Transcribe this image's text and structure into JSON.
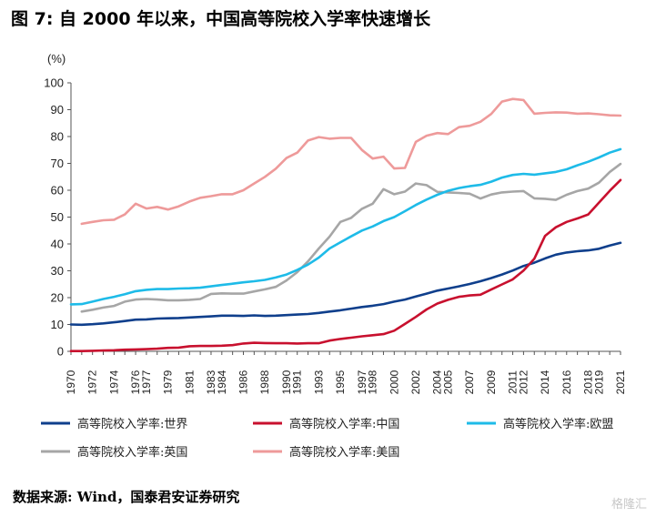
{
  "title": "图 7:  自 2000 年以来，中国高等院校入学率快速增长",
  "source": "数据来源:  Wind，国泰君安证券研究",
  "watermark": "格隆汇",
  "chart_data": {
    "type": "line",
    "unit_label": "(%)",
    "ylim": [
      0,
      100
    ],
    "yticks": [
      0,
      10,
      20,
      30,
      40,
      50,
      60,
      70,
      80,
      90,
      100
    ],
    "xlim": [
      1970,
      2021
    ],
    "xticks": [
      1970,
      1972,
      1974,
      1976,
      1977,
      1979,
      1981,
      1983,
      1984,
      1986,
      1988,
      1990,
      1991,
      1993,
      1995,
      1997,
      1998,
      2000,
      2002,
      2004,
      2005,
      2007,
      2009,
      2011,
      2012,
      2014,
      2016,
      2018,
      2019,
      2021
    ],
    "grid": false,
    "legend_position": "bottom",
    "series": [
      {
        "name": "高等院校入学率:世界",
        "color": "#0f3f8c",
        "x": [
          1970,
          1971,
          1972,
          1973,
          1974,
          1975,
          1976,
          1977,
          1978,
          1979,
          1980,
          1981,
          1982,
          1983,
          1984,
          1985,
          1986,
          1987,
          1988,
          1989,
          1990,
          1991,
          1992,
          1993,
          1994,
          1995,
          1996,
          1997,
          1998,
          1999,
          2000,
          2001,
          2002,
          2003,
          2004,
          2005,
          2006,
          2007,
          2008,
          2009,
          2010,
          2011,
          2012,
          2013,
          2014,
          2015,
          2016,
          2017,
          2018,
          2019,
          2020,
          2021
        ],
        "y": [
          10,
          9.9,
          10.1,
          10.4,
          10.8,
          11.3,
          11.8,
          11.9,
          12.2,
          12.3,
          12.4,
          12.6,
          12.8,
          13,
          13.3,
          13.3,
          13.2,
          13.4,
          13.2,
          13.3,
          13.5,
          13.7,
          13.9,
          14.3,
          14.8,
          15.3,
          15.9,
          16.5,
          17,
          17.6,
          18.5,
          19.3,
          20.4,
          21.5,
          22.6,
          23.4,
          24.2,
          25.1,
          26.1,
          27.3,
          28.6,
          30.1,
          31.8,
          33,
          34.6,
          36,
          36.8,
          37.3,
          37.6,
          38.2,
          39.4,
          40.4
        ]
      },
      {
        "name": "高等院校入学率:中国",
        "color": "#c8102e",
        "x": [
          1970,
          1971,
          1972,
          1973,
          1974,
          1975,
          1976,
          1977,
          1978,
          1979,
          1980,
          1981,
          1982,
          1983,
          1984,
          1985,
          1986,
          1987,
          1988,
          1989,
          1990,
          1991,
          1992,
          1993,
          1994,
          1995,
          1996,
          1997,
          1998,
          1999,
          2000,
          2001,
          2002,
          2003,
          2004,
          2005,
          2006,
          2007,
          2008,
          2009,
          2010,
          2011,
          2012,
          2013,
          2014,
          2015,
          2016,
          2017,
          2018,
          2019,
          2020,
          2021
        ],
        "y": [
          0.1,
          0.1,
          0.2,
          0.3,
          0.4,
          0.6,
          0.7,
          0.8,
          1,
          1.3,
          1.4,
          1.9,
          2,
          2,
          2.1,
          2.3,
          2.9,
          3.2,
          3.1,
          3,
          3,
          2.9,
          3,
          3,
          4,
          4.6,
          5.1,
          5.6,
          6,
          6.4,
          7.7,
          10.2,
          12.8,
          15.6,
          17.8,
          19.2,
          20.3,
          20.8,
          21.1,
          23,
          24.9,
          26.8,
          30.1,
          34.5,
          43,
          46.2,
          48.2,
          49.5,
          51,
          55.4,
          59.8,
          63.8
        ]
      },
      {
        "name": "高等院校入学率:欧盟",
        "color": "#1ebbe8",
        "x": [
          1970,
          1971,
          1972,
          1973,
          1974,
          1975,
          1976,
          1977,
          1978,
          1979,
          1980,
          1981,
          1982,
          1983,
          1984,
          1985,
          1986,
          1987,
          1988,
          1989,
          1990,
          1991,
          1992,
          1993,
          1994,
          1995,
          1996,
          1997,
          1998,
          1999,
          2000,
          2001,
          2002,
          2003,
          2004,
          2005,
          2006,
          2007,
          2008,
          2009,
          2010,
          2011,
          2012,
          2013,
          2014,
          2015,
          2016,
          2017,
          2018,
          2019,
          2020,
          2021
        ],
        "y": [
          17.5,
          17.6,
          18.5,
          19.5,
          20.3,
          21.3,
          22.4,
          22.9,
          23.2,
          23.2,
          23.4,
          23.5,
          23.7,
          24.2,
          24.7,
          25.2,
          25.7,
          26.1,
          26.6,
          27.5,
          28.6,
          30.3,
          32.3,
          34.9,
          38.3,
          40.6,
          42.8,
          45,
          46.5,
          48.5,
          50,
          52.2,
          54.5,
          56.5,
          58.3,
          59.8,
          60.8,
          61.5,
          62,
          63.2,
          64.7,
          65.7,
          66.1,
          65.8,
          66.3,
          66.8,
          67.8,
          69.3,
          70.6,
          72.2,
          74,
          75.3
        ]
      },
      {
        "name": "高等院校入学率:英国",
        "color": "#a6a6a6",
        "x": [
          1971,
          1972,
          1973,
          1974,
          1975,
          1976,
          1977,
          1978,
          1979,
          1980,
          1981,
          1982,
          1983,
          1984,
          1985,
          1986,
          1987,
          1988,
          1989,
          1990,
          1991,
          1992,
          1993,
          1994,
          1995,
          1996,
          1997,
          1998,
          1999,
          2000,
          2001,
          2002,
          2003,
          2004,
          2005,
          2006,
          2007,
          2008,
          2009,
          2010,
          2011,
          2012,
          2013,
          2014,
          2015,
          2016,
          2017,
          2018,
          2019,
          2020,
          2021
        ],
        "y": [
          14.8,
          15.5,
          16.3,
          16.9,
          18.5,
          19.3,
          19.5,
          19.3,
          19,
          19,
          19.2,
          19.5,
          21.4,
          21.6,
          21.5,
          21.5,
          22.3,
          23.1,
          24,
          26.4,
          29.5,
          33.5,
          38.3,
          42.7,
          48.2,
          49.7,
          53.1,
          55,
          60.4,
          58.5,
          59.5,
          62.5,
          61.9,
          59.4,
          59.2,
          59,
          58.7,
          56.9,
          58.4,
          59.2,
          59.5,
          59.7,
          57,
          56.8,
          56.4,
          58.3,
          59.7,
          60.6,
          62.8,
          66.8,
          69.8
        ]
      },
      {
        "name": "高等院校入学率:美国",
        "color": "#ee9a9a",
        "x": [
          1971,
          1972,
          1973,
          1974,
          1975,
          1976,
          1977,
          1978,
          1979,
          1980,
          1981,
          1982,
          1983,
          1984,
          1985,
          1986,
          1987,
          1988,
          1989,
          1990,
          1991,
          1992,
          1993,
          1994,
          1995,
          1996,
          1997,
          1998,
          1999,
          2000,
          2001,
          2002,
          2003,
          2004,
          2005,
          2006,
          2007,
          2008,
          2009,
          2010,
          2011,
          2012,
          2013,
          2014,
          2015,
          2016,
          2017,
          2018,
          2019,
          2020,
          2021
        ],
        "y": [
          47.5,
          48.2,
          48.8,
          49,
          51,
          55,
          53.2,
          53.8,
          52.8,
          54,
          55.8,
          57.2,
          57.8,
          58.5,
          58.5,
          60,
          62.5,
          65,
          68,
          72,
          74,
          78.5,
          79.8,
          79.2,
          79.5,
          79.5,
          75,
          71.8,
          72.5,
          68.1,
          68.3,
          78,
          80.3,
          81.3,
          80.9,
          83.5,
          84,
          85.5,
          88.4,
          93,
          94,
          93.6,
          88.5,
          88.8,
          89,
          88.9,
          88.5,
          88.6,
          88.3,
          87.9,
          87.8
        ]
      }
    ]
  }
}
